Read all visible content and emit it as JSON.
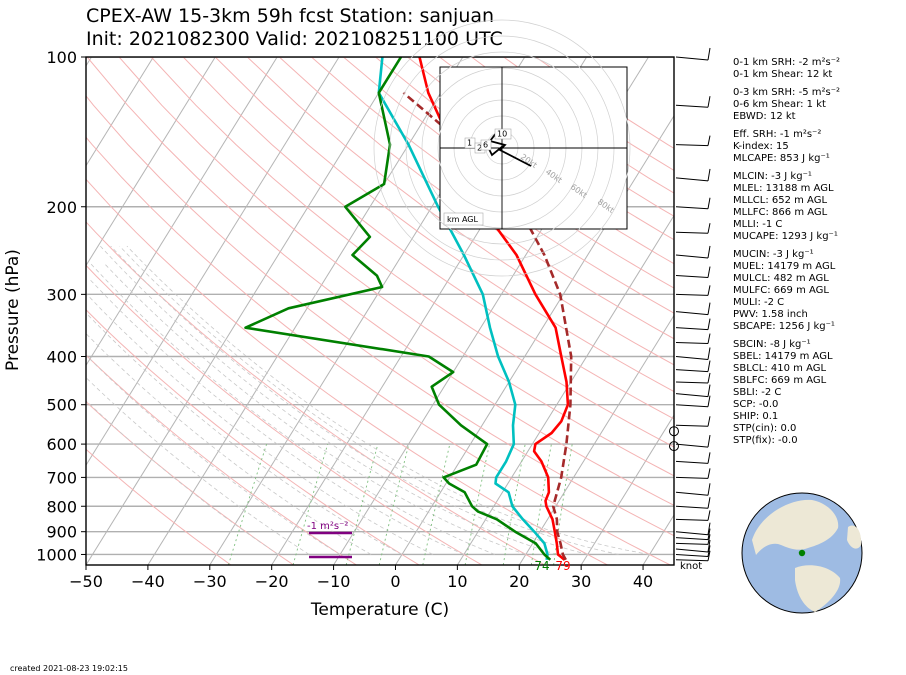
{
  "title_line1": "CPEX-AW 15-3km  59h fcst  Station: sanjuan",
  "title_line2": "Init: 2021082300  Valid: 202108251100 UTC",
  "created": "created 2021-08-23 19:02:15",
  "barb_units": "knot",
  "stats": [
    "0-1 km SRH: -2 m²s⁻²",
    "0-1 km Shear: 12 kt",
    "",
    "0-3 km SRH: -5 m²s⁻²",
    "0-6 km Shear: 1 kt",
    "EBWD: 12 kt",
    "",
    "Eff. SRH: -1 m²s⁻²",
    "K-index: 15",
    "MLCAPE: 853 J kg⁻¹",
    "",
    "MLCIN: -3 J kg⁻¹",
    "MLEL: 13188 m AGL",
    "MLLCL: 652 m AGL",
    "MLLFC: 866 m AGL",
    "MLLI: -1 C",
    "MUCAPE: 1293 J kg⁻¹",
    "",
    "MUCIN: -3 J kg⁻¹",
    "MUEL: 14179 m AGL",
    "MULCL: 482 m AGL",
    "MULFC: 669 m AGL",
    "MULI: -2 C",
    "PWV: 1.58 inch",
    "SBCAPE: 1256 J kg⁻¹",
    "",
    "SBCIN: -8 J kg⁻¹",
    "SBEL: 14179 m AGL",
    "SBLCL: 410 m AGL",
    "SBLFC: 669 m AGL",
    "SBLI: -2 C",
    "SCP: -0.0",
    "SHIP: 0.1",
    "STP(cin): 0.0",
    "STP(fix): -0.0"
  ],
  "hodo": {
    "label": "km AGL",
    "rings": [
      "20kt",
      "40kt",
      "60kt",
      "80kt"
    ],
    "height_labels": [
      "10",
      "1",
      "2",
      "6"
    ]
  },
  "chart_data": {
    "type": "line",
    "xlabel": "Temperature (C)",
    "ylabel": "Pressure (hPa)",
    "xlim": [
      -50,
      45
    ],
    "ylim": [
      1050,
      100
    ],
    "yscale": "log",
    "xticks": [
      -50,
      -40,
      -30,
      -20,
      -10,
      0,
      10,
      20,
      30,
      40
    ],
    "xtick_labels": [
      "−50",
      "−40",
      "−30",
      "−20",
      "−10",
      "0",
      "10",
      "20",
      "30",
      "40"
    ],
    "yticks": [
      1000,
      900,
      800,
      700,
      600,
      500,
      400,
      300,
      200,
      100
    ],
    "skew": 35,
    "surface_temperature_label": "79",
    "surface_dewpoint_label": "74",
    "srh_annotation": "-1 m²s⁻²",
    "series": [
      {
        "key": "temperature",
        "color": "#ff0000",
        "points": [
          [
            1025,
            26.8
          ],
          [
            1000,
            25.2
          ],
          [
            950,
            23.9
          ],
          [
            900,
            22.4
          ],
          [
            850,
            20.8
          ],
          [
            800,
            18.5
          ],
          [
            780,
            17.8
          ],
          [
            750,
            17.5
          ],
          [
            700,
            15.9
          ],
          [
            650,
            13.2
          ],
          [
            620,
            11.0
          ],
          [
            600,
            10.5
          ],
          [
            570,
            12.0
          ],
          [
            540,
            12.4
          ],
          [
            500,
            11.8
          ],
          [
            450,
            9.3
          ],
          [
            400,
            5.9
          ],
          [
            350,
            2.1
          ],
          [
            300,
            -4.5
          ],
          [
            250,
            -11.5
          ],
          [
            200,
            -22.0
          ],
          [
            150,
            -33.0
          ],
          [
            118,
            -42.0
          ],
          [
            100,
            -47.0
          ]
        ]
      },
      {
        "key": "dewpoint",
        "color": "#00c0c0",
        "points": [
          [
            1025,
            23.9
          ],
          [
            1000,
            23.5
          ],
          [
            950,
            21.9
          ],
          [
            900,
            19.1
          ],
          [
            850,
            16.0
          ],
          [
            800,
            13.0
          ],
          [
            750,
            11.0
          ],
          [
            720,
            8.0
          ],
          [
            700,
            7.5
          ],
          [
            650,
            7.5
          ],
          [
            600,
            7.0
          ],
          [
            550,
            5.0
          ],
          [
            500,
            3.3
          ],
          [
            450,
            0.0
          ],
          [
            400,
            -4.3
          ],
          [
            350,
            -8.5
          ],
          [
            300,
            -13.0
          ],
          [
            250,
            -20.0
          ],
          [
            200,
            -29.0
          ],
          [
            150,
            -40.0
          ],
          [
            118,
            -50.0
          ],
          [
            100,
            -53.0
          ]
        ]
      },
      {
        "key": "wet_bulb",
        "color": "#008000",
        "points": [
          [
            1025,
            24.5
          ],
          [
            1000,
            23.0
          ],
          [
            950,
            20.5
          ],
          [
            900,
            16.0
          ],
          [
            850,
            11.8
          ],
          [
            820,
            8.0
          ],
          [
            800,
            6.5
          ],
          [
            750,
            3.9
          ],
          [
            720,
            0.5
          ],
          [
            700,
            -1.0
          ],
          [
            660,
            3.0
          ],
          [
            600,
            2.7
          ],
          [
            550,
            -3.4
          ],
          [
            500,
            -9.0
          ],
          [
            460,
            -12.0
          ],
          [
            430,
            -10.0
          ],
          [
            400,
            -15.5
          ],
          [
            350,
            -48.0
          ],
          [
            320,
            -43.0
          ],
          [
            290,
            -30.0
          ],
          [
            275,
            -32.0
          ],
          [
            250,
            -38.0
          ],
          [
            230,
            -37.0
          ],
          [
            200,
            -44.0
          ],
          [
            180,
            -40.0
          ],
          [
            150,
            -43.0
          ],
          [
            118,
            -50.0
          ],
          [
            100,
            -50.0
          ]
        ]
      },
      {
        "key": "parcel",
        "color": "#a52a2a",
        "dashed": true,
        "points": [
          [
            1025,
            27.0
          ],
          [
            1000,
            26.0
          ],
          [
            950,
            24.5
          ],
          [
            900,
            22.8
          ],
          [
            850,
            21.5
          ],
          [
            800,
            19.6
          ],
          [
            700,
            18.0
          ],
          [
            600,
            15.5
          ],
          [
            500,
            12.2
          ],
          [
            400,
            7.5
          ],
          [
            300,
            -0.5
          ],
          [
            250,
            -7.0
          ],
          [
            200,
            -16.0
          ],
          [
            150,
            -31.0
          ],
          [
            118,
            -46.0
          ]
        ]
      }
    ]
  }
}
